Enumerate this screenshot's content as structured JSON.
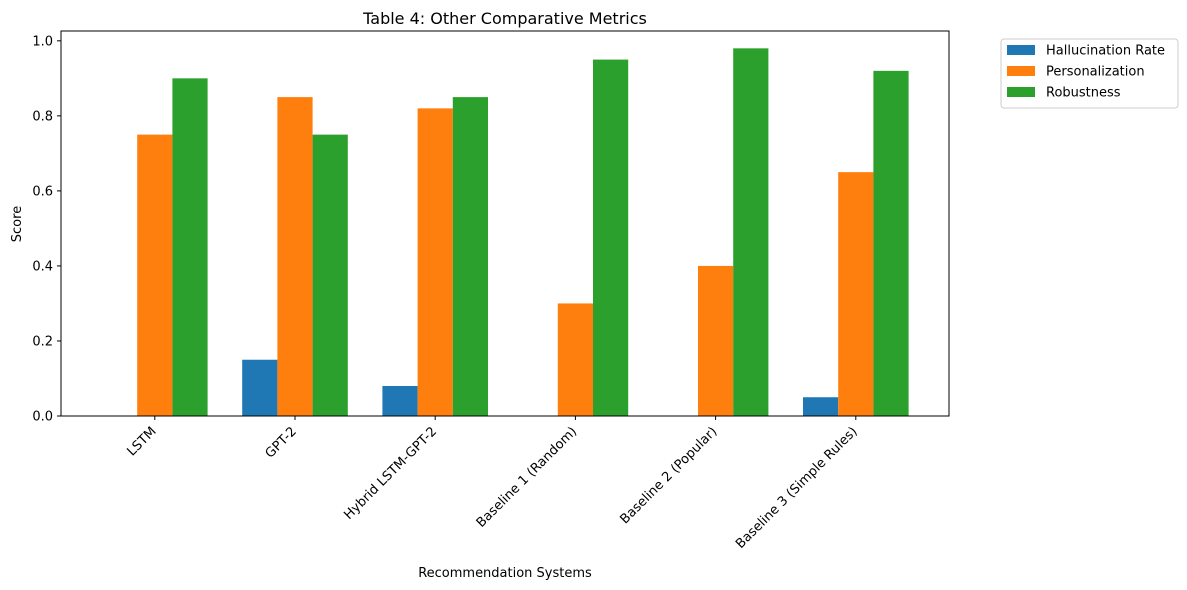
{
  "chart_data": {
    "type": "bar",
    "title": "Table 4: Other Comparative Metrics",
    "xlabel": "Recommendation Systems",
    "ylabel": "Score",
    "ylim": [
      0,
      1.0
    ],
    "yticks": [
      "0.0",
      "0.2",
      "0.4",
      "0.6",
      "0.8",
      "1.0"
    ],
    "ytick_values": [
      0,
      0.2,
      0.4,
      0.6,
      0.8,
      1.0
    ],
    "categories": [
      "LSTM",
      "GPT-2",
      "Hybrid LSTM-GPT-2",
      "Baseline 1 (Random)",
      "Baseline 2 (Popular)",
      "Baseline 3 (Simple Rules)"
    ],
    "series": [
      {
        "name": "Hallucination Rate",
        "color": "#1f77b4",
        "values": [
          0.0,
          0.15,
          0.08,
          0.0,
          0.0,
          0.05
        ]
      },
      {
        "name": "Personalization",
        "color": "#ff7f0e",
        "values": [
          0.75,
          0.85,
          0.82,
          0.3,
          0.4,
          0.65
        ]
      },
      {
        "name": "Robustness",
        "color": "#2ca02c",
        "values": [
          0.9,
          0.75,
          0.85,
          0.95,
          0.98,
          0.92
        ]
      }
    ],
    "legend_position": "outside top-right",
    "grid": false
  }
}
